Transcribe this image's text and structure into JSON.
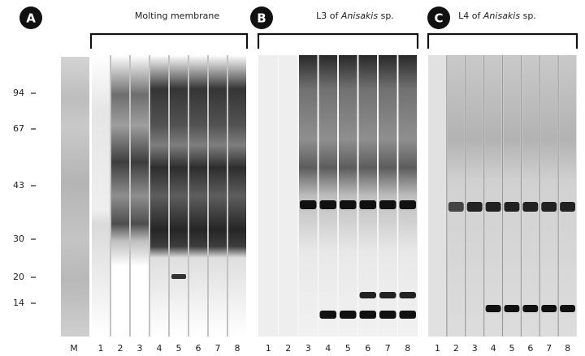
{
  "marker": {
    "label": "M",
    "sizes": [
      94,
      67,
      43,
      30,
      20,
      14
    ]
  },
  "panels": [
    {
      "label": "A",
      "title": [
        {
          "text": "Molting membrane"
        }
      ],
      "lanes": [
        1,
        2,
        3,
        4,
        5,
        6,
        7,
        8
      ]
    },
    {
      "label": "B",
      "title": [
        {
          "text": "L3 of "
        },
        {
          "text": "Anisakis",
          "italic": true
        },
        {
          "text": " sp."
        }
      ],
      "lanes": [
        1,
        2,
        3,
        4,
        5,
        6,
        7,
        8
      ]
    },
    {
      "label": "C",
      "title": [
        {
          "text": "L4 of "
        },
        {
          "text": "Anisakis",
          "italic": true
        },
        {
          "text": " sp."
        }
      ],
      "lanes": [
        1,
        2,
        3,
        4,
        5,
        6,
        7,
        8
      ]
    }
  ]
}
